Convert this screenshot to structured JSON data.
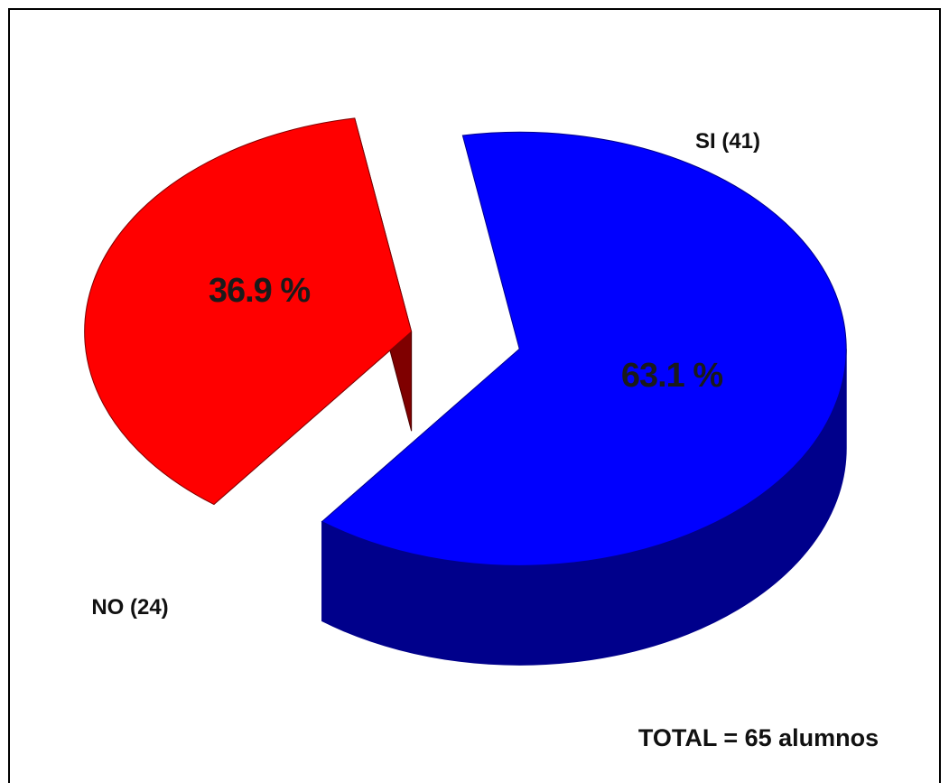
{
  "chart_data": {
    "type": "pie",
    "style": "3d-exploded",
    "slices": [
      {
        "label": "NO (24)",
        "count": 24,
        "percent_label": "36.9 %",
        "value": 36.9,
        "color": "#ff0000",
        "side_color": "#7f0000"
      },
      {
        "label": "SI (41)",
        "count": 41,
        "percent_label": "63.1 %",
        "value": 63.1,
        "color": "#0000ff",
        "side_color": "#00008b"
      }
    ],
    "annotation": "TOTAL = 65 alumnos"
  }
}
